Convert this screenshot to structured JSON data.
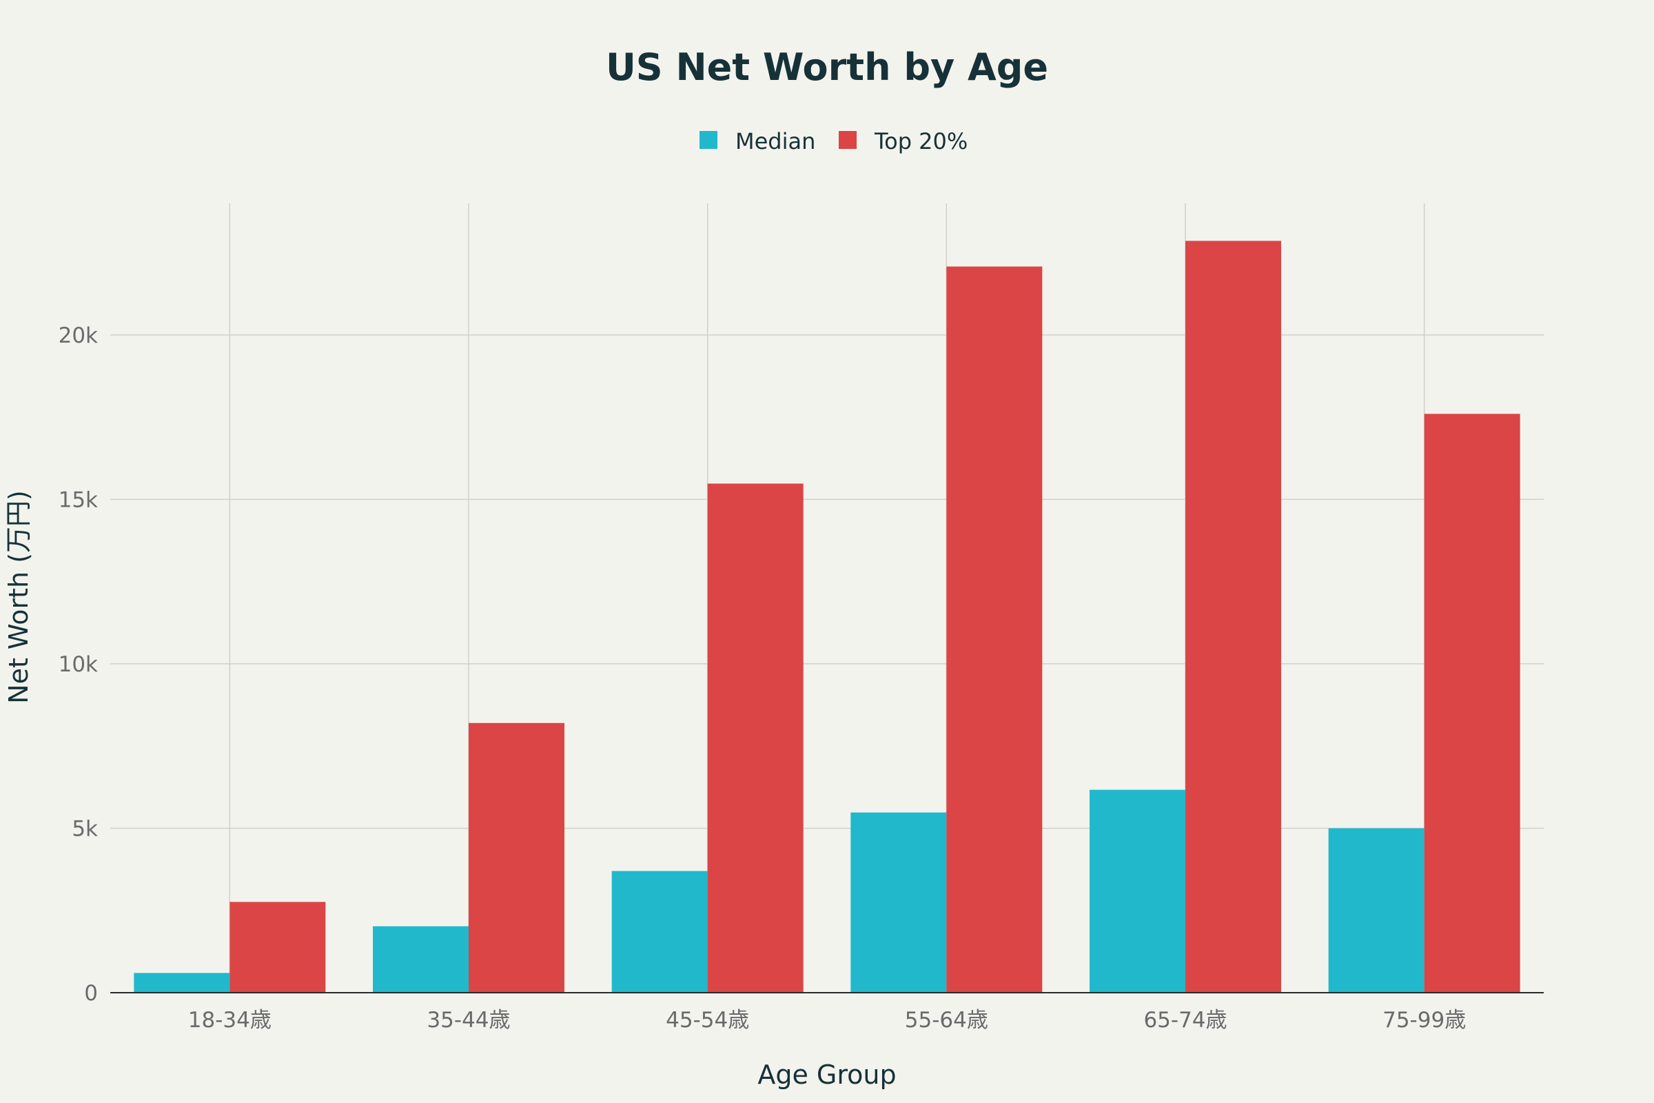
{
  "chart_data": {
    "type": "bar",
    "title": "US Net Worth by Age",
    "xlabel": "Age Group",
    "ylabel": "Net Worth (万円)",
    "categories": [
      "18-34歳",
      "35-44歳",
      "45-54歳",
      "55-64歳",
      "65-74歳",
      "75-99歳"
    ],
    "series": [
      {
        "name": "Median",
        "color": "#21b8cc",
        "values": [
          600,
          2020,
          3700,
          5480,
          6170,
          5000
        ]
      },
      {
        "name": "Top 20%",
        "color": "#db4546",
        "values": [
          2760,
          8200,
          15480,
          22080,
          22860,
          17600
        ]
      }
    ],
    "ylim": [
      0,
      24000
    ],
    "yticks": [
      0,
      5000,
      10000,
      15000,
      20000
    ],
    "ytick_labels": [
      "0",
      "5k",
      "10k",
      "15k",
      "20k"
    ],
    "grid": true,
    "legend_position": "top-center"
  }
}
